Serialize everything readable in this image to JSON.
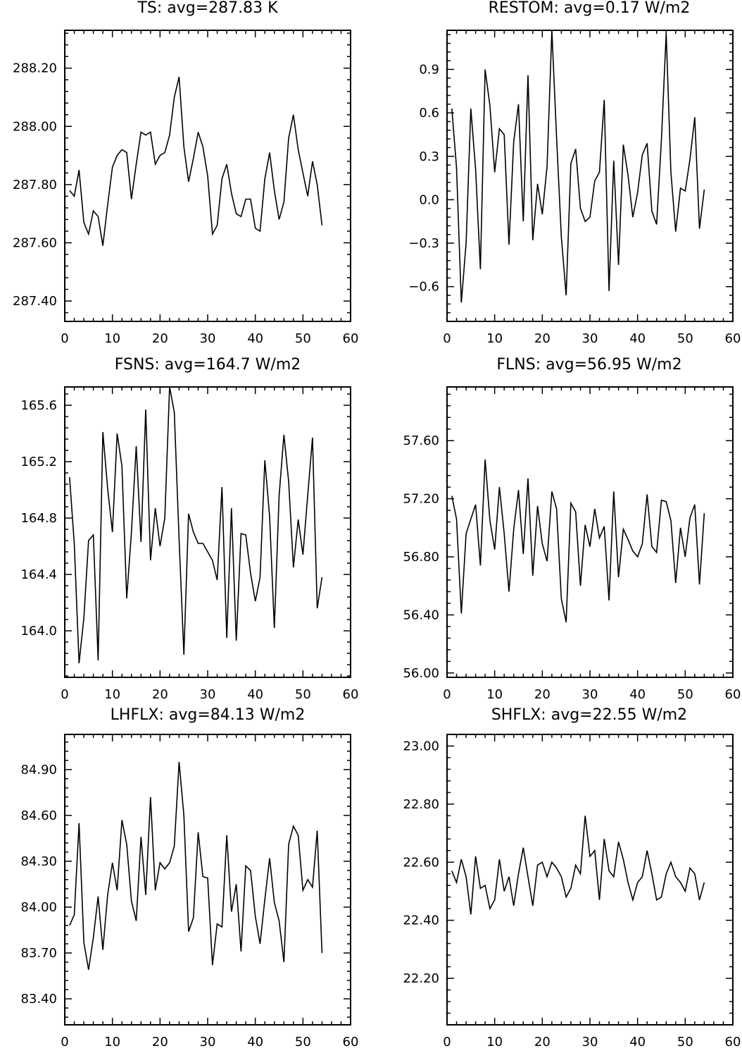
{
  "chart_data": [
    {
      "type": "line",
      "title": "TS:  avg=287.83  K",
      "xlim": [
        0,
        60
      ],
      "ylim": [
        287.33,
        288.33
      ],
      "xticks": [
        "0",
        "10",
        "20",
        "30",
        "40",
        "50",
        "60"
      ],
      "yticks": [
        "287.40",
        "287.60",
        "287.80",
        "288.00",
        "288.20"
      ],
      "x_start": 1,
      "y": [
        287.78,
        287.76,
        287.85,
        287.67,
        287.63,
        287.71,
        287.69,
        287.59,
        287.73,
        287.86,
        287.9,
        287.92,
        287.91,
        287.75,
        287.87,
        287.98,
        287.97,
        287.98,
        287.87,
        287.9,
        287.91,
        287.97,
        288.1,
        288.17,
        287.93,
        287.81,
        287.89,
        287.98,
        287.93,
        287.83,
        287.63,
        287.66,
        287.82,
        287.87,
        287.77,
        287.7,
        287.69,
        287.75,
        287.75,
        287.65,
        287.64,
        287.82,
        287.91,
        287.78,
        287.68,
        287.74,
        287.96,
        288.04,
        287.92,
        287.84,
        287.76,
        287.88,
        287.8,
        287.66
      ]
    },
    {
      "type": "line",
      "title": "RESTOM:  avg=0.17  W/m2",
      "xlim": [
        0,
        60
      ],
      "ylim": [
        -0.84,
        1.17
      ],
      "xticks": [
        "0",
        "10",
        "20",
        "30",
        "40",
        "50",
        "60"
      ],
      "yticks": [
        "−0.6",
        "−0.3",
        "0.0",
        "0.3",
        "0.6",
        "0.9"
      ],
      "x_start": 1,
      "y": [
        0.63,
        0.22,
        -0.71,
        -0.3,
        0.63,
        0.21,
        -0.48,
        0.9,
        0.65,
        0.19,
        0.49,
        0.45,
        -0.31,
        0.4,
        0.66,
        -0.15,
        0.86,
        -0.28,
        0.11,
        -0.1,
        0.23,
        1.17,
        0.43,
        -0.26,
        -0.66,
        0.25,
        0.35,
        -0.06,
        -0.15,
        -0.12,
        0.13,
        0.19,
        0.69,
        -0.63,
        0.27,
        -0.45,
        0.38,
        0.17,
        -0.12,
        0.05,
        0.31,
        0.39,
        -0.08,
        -0.17,
        0.41,
        1.15,
        0.19,
        -0.22,
        0.08,
        0.06,
        0.28,
        0.57,
        -0.2,
        0.07
      ]
    },
    {
      "type": "line",
      "title": "FSNS:  avg=164.7  W/m2",
      "xlim": [
        0,
        60
      ],
      "ylim": [
        163.67,
        165.73
      ],
      "xticks": [
        "0",
        "10",
        "20",
        "30",
        "40",
        "50",
        "60"
      ],
      "yticks": [
        "164.0",
        "164.4",
        "164.8",
        "165.2",
        "165.6"
      ],
      "x_start": 1,
      "y": [
        165.09,
        164.62,
        163.77,
        164.09,
        164.64,
        164.68,
        163.79,
        165.41,
        165.01,
        164.7,
        165.4,
        165.17,
        164.23,
        164.7,
        165.31,
        164.63,
        165.57,
        164.5,
        164.87,
        164.6,
        164.8,
        165.73,
        165.55,
        164.65,
        163.83,
        164.83,
        164.7,
        164.62,
        164.62,
        164.56,
        164.5,
        164.36,
        165.02,
        163.95,
        164.87,
        163.93,
        164.69,
        164.68,
        164.41,
        164.21,
        164.38,
        165.21,
        164.81,
        164.02,
        164.96,
        165.39,
        165.06,
        164.45,
        164.79,
        164.54,
        164.96,
        165.37,
        164.16,
        164.38
      ]
    },
    {
      "type": "line",
      "title": "FLNS:  avg=56.95  W/m2",
      "xlim": [
        0,
        60
      ],
      "ylim": [
        55.97,
        57.97
      ],
      "xticks": [
        "0",
        "10",
        "20",
        "30",
        "40",
        "50",
        "60"
      ],
      "yticks": [
        "56.00",
        "56.40",
        "56.80",
        "57.20",
        "57.60"
      ],
      "x_start": 1,
      "y": [
        57.22,
        57.06,
        56.41,
        56.96,
        57.06,
        57.16,
        56.74,
        57.47,
        57.05,
        56.85,
        57.28,
        56.96,
        56.56,
        56.99,
        57.26,
        56.82,
        57.34,
        56.67,
        57.15,
        56.89,
        56.77,
        57.25,
        57.13,
        56.51,
        56.35,
        57.17,
        57.11,
        56.6,
        57.02,
        56.87,
        57.13,
        56.93,
        57.01,
        56.5,
        57.25,
        56.66,
        56.99,
        56.92,
        56.84,
        56.8,
        56.89,
        57.23,
        56.87,
        56.83,
        57.19,
        57.18,
        57.05,
        56.62,
        57.0,
        56.8,
        57.07,
        57.16,
        56.61,
        57.1
      ]
    },
    {
      "type": "line",
      "title": "LHFLX:  avg=84.13  W/m2",
      "xlim": [
        0,
        60
      ],
      "ylim": [
        83.23,
        85.13
      ],
      "xticks": [
        "0",
        "10",
        "20",
        "30",
        "40",
        "50",
        "60"
      ],
      "yticks": [
        "83.40",
        "83.70",
        "84.00",
        "84.30",
        "84.60",
        "84.90"
      ],
      "x_start": 1,
      "y": [
        83.88,
        83.95,
        84.55,
        83.77,
        83.59,
        83.8,
        84.07,
        83.72,
        84.08,
        84.29,
        84.11,
        84.57,
        84.41,
        84.04,
        83.91,
        84.46,
        84.08,
        84.72,
        84.11,
        84.29,
        84.25,
        84.29,
        84.4,
        84.95,
        84.6,
        83.84,
        83.93,
        84.49,
        84.2,
        84.19,
        83.62,
        83.89,
        83.87,
        84.47,
        83.97,
        84.15,
        83.71,
        84.27,
        84.24,
        83.94,
        83.76,
        84.05,
        84.32,
        84.03,
        83.91,
        83.64,
        84.41,
        84.53,
        84.47,
        84.11,
        84.18,
        84.13,
        84.5,
        83.7
      ]
    },
    {
      "type": "line",
      "title": "SHFLX:  avg=22.55  W/m2",
      "xlim": [
        0,
        60
      ],
      "ylim": [
        22.04,
        23.04
      ],
      "xticks": [
        "0",
        "10",
        "20",
        "30",
        "40",
        "50",
        "60"
      ],
      "yticks": [
        "22.20",
        "22.40",
        "22.60",
        "22.80",
        "23.00"
      ],
      "x_start": 1,
      "y": [
        22.57,
        22.53,
        22.61,
        22.55,
        22.42,
        22.62,
        22.51,
        22.52,
        22.44,
        22.47,
        22.61,
        22.5,
        22.55,
        22.45,
        22.56,
        22.65,
        22.55,
        22.45,
        22.59,
        22.6,
        22.55,
        22.6,
        22.58,
        22.55,
        22.48,
        22.51,
        22.59,
        22.56,
        22.76,
        22.62,
        22.64,
        22.47,
        22.68,
        22.57,
        22.55,
        22.67,
        22.61,
        22.53,
        22.47,
        22.53,
        22.55,
        22.64,
        22.56,
        22.47,
        22.48,
        22.56,
        22.6,
        22.55,
        22.53,
        22.5,
        22.58,
        22.56,
        22.47,
        22.53
      ]
    }
  ]
}
